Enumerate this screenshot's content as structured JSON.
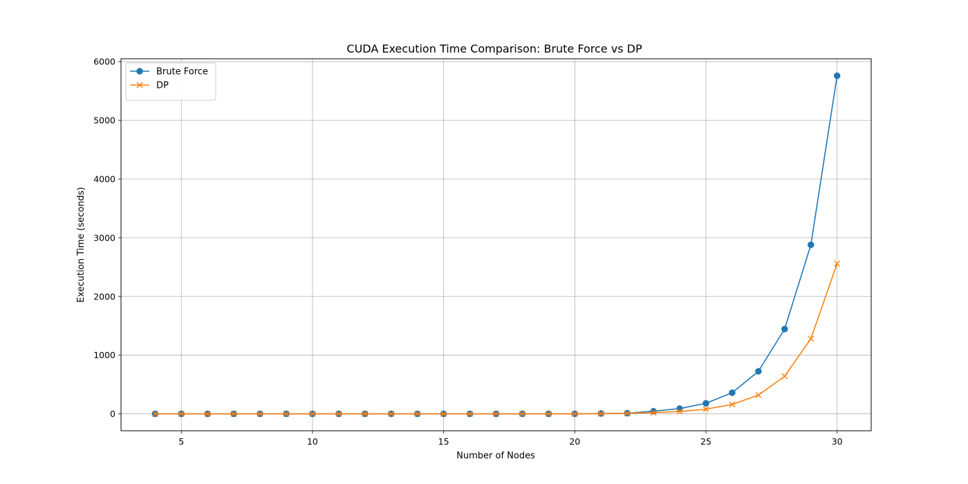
{
  "chart_data": {
    "type": "line",
    "title": "CUDA Execution Time Comparison: Brute Force vs DP",
    "xlabel": "Number of Nodes",
    "ylabel": "Execution Time (seconds)",
    "xlim": [
      2.7,
      31.3
    ],
    "ylim": [
      -288,
      6050
    ],
    "xticks": [
      5,
      10,
      15,
      20,
      25,
      30
    ],
    "yticks": [
      0,
      1000,
      2000,
      3000,
      4000,
      5000,
      6000
    ],
    "grid": true,
    "legend_position": "top-left",
    "x": [
      4,
      5,
      6,
      7,
      8,
      9,
      10,
      11,
      12,
      13,
      14,
      15,
      16,
      17,
      18,
      19,
      20,
      21,
      22,
      23,
      24,
      25,
      26,
      27,
      28,
      29,
      30
    ],
    "series": [
      {
        "name": "Brute Force",
        "color": "#1f77b4",
        "marker": "circle",
        "values": [
          0,
          0,
          0,
          0,
          0,
          0,
          0,
          0,
          0,
          0,
          0,
          0,
          0,
          0,
          0,
          0,
          1,
          6,
          11,
          45,
          90,
          180,
          360,
          725,
          1445,
          2880,
          5760
        ]
      },
      {
        "name": "DP",
        "color": "#ff7f0e",
        "marker": "x",
        "values": [
          0,
          0,
          0,
          0,
          0,
          0,
          0,
          0,
          0,
          0,
          0,
          0,
          0,
          0,
          0,
          0,
          0,
          3,
          10,
          20,
          40,
          80,
          160,
          320,
          640,
          1280,
          2560
        ]
      }
    ]
  }
}
